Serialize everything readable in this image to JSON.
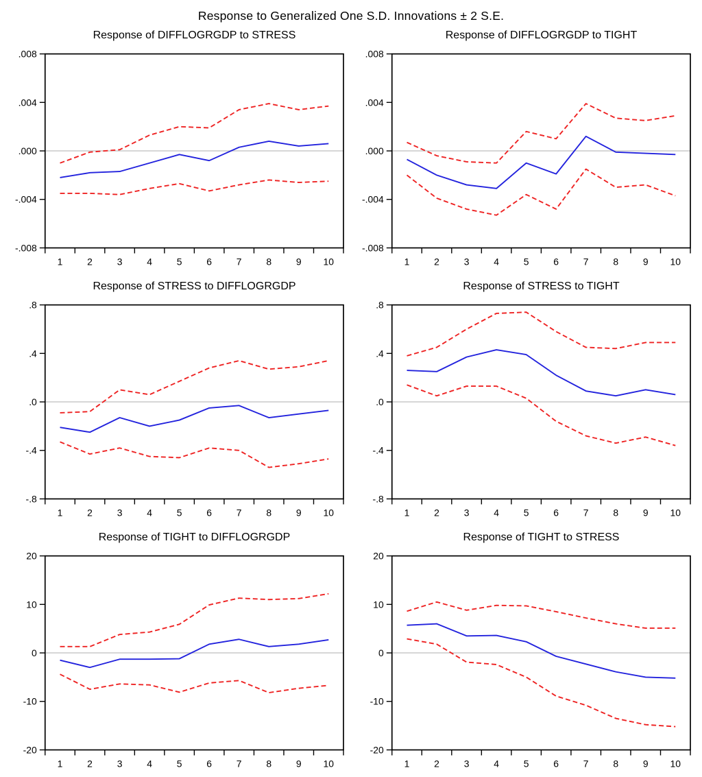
{
  "page": {
    "main_title": "Response to Generalized One S.D. Innovations ± 2 S.E."
  },
  "colors": {
    "center_line": "#2222dd",
    "band_line": "#ee2222",
    "zero_line": "#c8c8c8",
    "axis": "#000000",
    "text": "#000000",
    "background": "#ffffff"
  },
  "chart_data": [
    {
      "type": "line",
      "title": "Response of DIFFLOGRGDP to STRESS",
      "xlabel": "",
      "ylabel": "",
      "x": [
        1,
        2,
        3,
        4,
        5,
        6,
        7,
        8,
        9,
        10
      ],
      "x_range": [
        0.5,
        10.5
      ],
      "ylim": [
        -0.008,
        0.008
      ],
      "ytick_values": [
        0.008,
        0.004,
        0.0,
        -0.004,
        -0.008
      ],
      "ytick_labels": [
        ".008",
        ".004",
        ".000",
        "-.004",
        "-.008"
      ],
      "grid": "zero-line-only",
      "legend": "none",
      "series": [
        {
          "name": "response",
          "style": "solid",
          "color_key": "center_line",
          "values": [
            -0.0022,
            -0.0018,
            -0.0017,
            -0.001,
            -0.0003,
            -0.0008,
            0.0003,
            0.0008,
            0.0004,
            0.0006
          ]
        },
        {
          "name": "upper-2se",
          "style": "dashed",
          "color_key": "band_line",
          "values": [
            -0.001,
            -0.0001,
            0.0001,
            0.0013,
            0.002,
            0.0019,
            0.0034,
            0.0039,
            0.0034,
            0.0037
          ]
        },
        {
          "name": "lower-2se",
          "style": "dashed",
          "color_key": "band_line",
          "values": [
            -0.0035,
            -0.0035,
            -0.0036,
            -0.0031,
            -0.0027,
            -0.0033,
            -0.0028,
            -0.0024,
            -0.0026,
            -0.0025
          ]
        }
      ]
    },
    {
      "type": "line",
      "title": "Response of DIFFLOGRGDP to TIGHT",
      "xlabel": "",
      "ylabel": "",
      "x": [
        1,
        2,
        3,
        4,
        5,
        6,
        7,
        8,
        9,
        10
      ],
      "x_range": [
        0.5,
        10.5
      ],
      "ylim": [
        -0.008,
        0.008
      ],
      "ytick_values": [
        0.008,
        0.004,
        0.0,
        -0.004,
        -0.008
      ],
      "ytick_labels": [
        ".008",
        ".004",
        ".000",
        "-.004",
        "-.008"
      ],
      "grid": "zero-line-only",
      "legend": "none",
      "series": [
        {
          "name": "response",
          "style": "solid",
          "color_key": "center_line",
          "values": [
            -0.0007,
            -0.002,
            -0.0028,
            -0.0031,
            -0.001,
            -0.0019,
            0.0012,
            -0.0001,
            -0.0002,
            -0.0003
          ]
        },
        {
          "name": "upper-2se",
          "style": "dashed",
          "color_key": "band_line",
          "values": [
            0.0007,
            -0.0004,
            -0.0009,
            -0.001,
            0.0016,
            0.001,
            0.0039,
            0.0027,
            0.0025,
            0.0029
          ]
        },
        {
          "name": "lower-2se",
          "style": "dashed",
          "color_key": "band_line",
          "values": [
            -0.002,
            -0.0039,
            -0.0048,
            -0.0053,
            -0.0036,
            -0.0048,
            -0.0015,
            -0.003,
            -0.0028,
            -0.0037
          ]
        }
      ]
    },
    {
      "type": "line",
      "title": "Response of STRESS to DIFFLOGRGDP",
      "xlabel": "",
      "ylabel": "",
      "x": [
        1,
        2,
        3,
        4,
        5,
        6,
        7,
        8,
        9,
        10
      ],
      "x_range": [
        0.5,
        10.5
      ],
      "ylim": [
        -0.8,
        0.8
      ],
      "ytick_values": [
        0.8,
        0.4,
        0.0,
        -0.4,
        -0.8
      ],
      "ytick_labels": [
        ".8",
        ".4",
        ".0",
        "-.4",
        "-.8"
      ],
      "grid": "zero-line-only",
      "legend": "none",
      "series": [
        {
          "name": "response",
          "style": "solid",
          "color_key": "center_line",
          "values": [
            -0.21,
            -0.25,
            -0.13,
            -0.2,
            -0.15,
            -0.05,
            -0.03,
            -0.13,
            -0.1,
            -0.07
          ]
        },
        {
          "name": "upper-2se",
          "style": "dashed",
          "color_key": "band_line",
          "values": [
            -0.09,
            -0.08,
            0.1,
            0.06,
            0.17,
            0.28,
            0.34,
            0.27,
            0.29,
            0.34
          ]
        },
        {
          "name": "lower-2se",
          "style": "dashed",
          "color_key": "band_line",
          "values": [
            -0.33,
            -0.43,
            -0.38,
            -0.45,
            -0.46,
            -0.38,
            -0.4,
            -0.54,
            -0.51,
            -0.47
          ]
        }
      ]
    },
    {
      "type": "line",
      "title": "Response of STRESS to TIGHT",
      "xlabel": "",
      "ylabel": "",
      "x": [
        1,
        2,
        3,
        4,
        5,
        6,
        7,
        8,
        9,
        10
      ],
      "x_range": [
        0.5,
        10.5
      ],
      "ylim": [
        -0.8,
        0.8
      ],
      "ytick_values": [
        0.8,
        0.4,
        0.0,
        -0.4,
        -0.8
      ],
      "ytick_labels": [
        ".8",
        ".4",
        ".0",
        "-.4",
        "-.8"
      ],
      "grid": "zero-line-only",
      "legend": "none",
      "series": [
        {
          "name": "response",
          "style": "solid",
          "color_key": "center_line",
          "values": [
            0.26,
            0.25,
            0.37,
            0.43,
            0.39,
            0.22,
            0.09,
            0.05,
            0.1,
            0.06
          ]
        },
        {
          "name": "upper-2se",
          "style": "dashed",
          "color_key": "band_line",
          "values": [
            0.38,
            0.45,
            0.6,
            0.73,
            0.74,
            0.58,
            0.45,
            0.44,
            0.49,
            0.49
          ]
        },
        {
          "name": "lower-2se",
          "style": "dashed",
          "color_key": "band_line",
          "values": [
            0.14,
            0.05,
            0.13,
            0.13,
            0.03,
            -0.16,
            -0.28,
            -0.34,
            -0.29,
            -0.36
          ]
        }
      ]
    },
    {
      "type": "line",
      "title": "Response of TIGHT to DIFFLOGRGDP",
      "xlabel": "",
      "ylabel": "",
      "x": [
        1,
        2,
        3,
        4,
        5,
        6,
        7,
        8,
        9,
        10
      ],
      "x_range": [
        0.5,
        10.5
      ],
      "ylim": [
        -20,
        20
      ],
      "ytick_values": [
        20,
        10,
        0,
        -10,
        -20
      ],
      "ytick_labels": [
        "20",
        "10",
        "0",
        "-10",
        "-20"
      ],
      "grid": "zero-line-only",
      "legend": "none",
      "series": [
        {
          "name": "response",
          "style": "solid",
          "color_key": "center_line",
          "values": [
            -1.5,
            -3.0,
            -1.3,
            -1.3,
            -1.2,
            1.8,
            2.8,
            1.3,
            1.8,
            2.7
          ]
        },
        {
          "name": "upper-2se",
          "style": "dashed",
          "color_key": "band_line",
          "values": [
            1.3,
            1.3,
            3.8,
            4.3,
            5.9,
            9.9,
            11.3,
            11.0,
            11.2,
            12.2
          ]
        },
        {
          "name": "lower-2se",
          "style": "dashed",
          "color_key": "band_line",
          "values": [
            -4.4,
            -7.5,
            -6.4,
            -6.6,
            -8.1,
            -6.2,
            -5.7,
            -8.2,
            -7.3,
            -6.7
          ]
        }
      ]
    },
    {
      "type": "line",
      "title": "Response of TIGHT to STRESS",
      "xlabel": "",
      "ylabel": "",
      "x": [
        1,
        2,
        3,
        4,
        5,
        6,
        7,
        8,
        9,
        10
      ],
      "x_range": [
        0.5,
        10.5
      ],
      "ylim": [
        -20,
        20
      ],
      "ytick_values": [
        20,
        10,
        0,
        -10,
        -20
      ],
      "ytick_labels": [
        "20",
        "10",
        "0",
        "-10",
        "-20"
      ],
      "grid": "zero-line-only",
      "legend": "none",
      "series": [
        {
          "name": "response",
          "style": "solid",
          "color_key": "center_line",
          "values": [
            5.7,
            6.0,
            3.5,
            3.6,
            2.3,
            -0.7,
            -2.3,
            -3.9,
            -5.0,
            -5.2
          ]
        },
        {
          "name": "upper-2se",
          "style": "dashed",
          "color_key": "band_line",
          "values": [
            8.6,
            10.5,
            8.8,
            9.8,
            9.7,
            8.5,
            7.2,
            6.0,
            5.1,
            5.1
          ]
        },
        {
          "name": "lower-2se",
          "style": "dashed",
          "color_key": "band_line",
          "values": [
            2.9,
            1.8,
            -1.9,
            -2.4,
            -5.0,
            -8.9,
            -10.8,
            -13.5,
            -14.8,
            -15.2
          ]
        }
      ]
    }
  ]
}
